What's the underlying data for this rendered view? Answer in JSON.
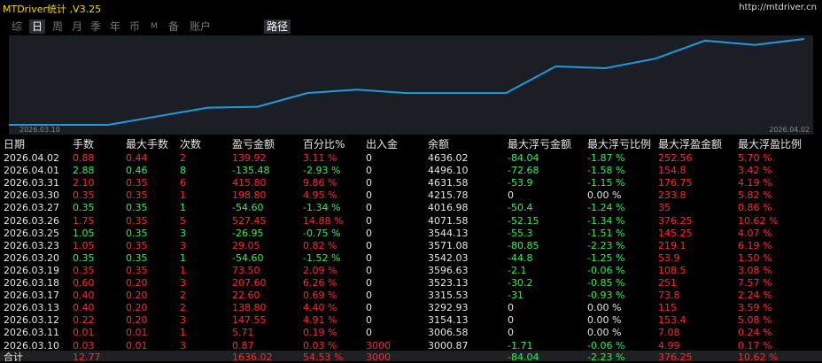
{
  "header": {
    "title": "MTDriver统计 ,V3.25",
    "url": "http://mtdriver.cn"
  },
  "tabs": [
    "综",
    "日",
    "周",
    "月",
    "季",
    "年",
    "币",
    "M",
    "备",
    "账户",
    "路径"
  ],
  "chart": {
    "start_label": "2026.03.10",
    "end_label": "2026.04.02",
    "values": [
      0,
      0,
      0,
      10,
      20,
      21,
      37,
      41,
      37,
      37,
      37,
      68,
      66,
      77,
      98,
      93,
      100
    ],
    "ylim": [
      0,
      100
    ],
    "color": "#1e9be0"
  },
  "table": {
    "columns": [
      "日期",
      "手数",
      "最大手数",
      "次数",
      "盈亏金额",
      "百分比%",
      "出入金",
      "余额",
      "最大浮亏金额",
      "最大浮亏比例",
      "最大浮盈金额",
      "最大浮盈比例"
    ],
    "rows": [
      [
        "2026.04.02",
        "0.88",
        "0.44",
        "2",
        "139.92",
        "3.11 %",
        "0",
        "4636.02",
        "-84.04",
        "-1.87 %",
        "252.56",
        "5.70 %"
      ],
      [
        "2026.04.01",
        "2.88",
        "0.46",
        "8",
        "-135.48",
        "-2.93 %",
        "0",
        "4496.10",
        "-72.68",
        "-1.58 %",
        "154.8",
        "3.42 %"
      ],
      [
        "2026.03.31",
        "2.10",
        "0.35",
        "6",
        "415.80",
        "9.86 %",
        "0",
        "4631.58",
        "-53.9",
        "-1.15 %",
        "176.75",
        "4.19 %"
      ],
      [
        "2026.03.30",
        "0.35",
        "0.35",
        "1",
        "198.80",
        "4.95 %",
        "0",
        "4215.78",
        "0",
        "0.00 %",
        "233.8",
        "5.82 %"
      ],
      [
        "2026.03.27",
        "0.35",
        "0.35",
        "1",
        "-54.60",
        "-1.34 %",
        "0",
        "4016.98",
        "-50.4",
        "-1.24 %",
        "35",
        "0.86 %"
      ],
      [
        "2026.03.26",
        "1.75",
        "0.35",
        "5",
        "527.45",
        "14.88 %",
        "0",
        "4071.58",
        "-52.15",
        "-1.34 %",
        "376.25",
        "10.62 %"
      ],
      [
        "2026.03.25",
        "1.05",
        "0.35",
        "3",
        "-26.95",
        "-0.75 %",
        "0",
        "3544.13",
        "-55.3",
        "-1.51 %",
        "145.25",
        "4.07 %"
      ],
      [
        "2026.03.23",
        "1.05",
        "0.35",
        "3",
        "29.05",
        "0.82 %",
        "0",
        "3571.08",
        "-80.85",
        "-2.23 %",
        "219.1",
        "6.19 %"
      ],
      [
        "2026.03.20",
        "0.35",
        "0.35",
        "1",
        "-54.60",
        "-1.52 %",
        "0",
        "3542.03",
        "-44.8",
        "-1.25 %",
        "53.9",
        "1.50 %"
      ],
      [
        "2026.03.19",
        "0.35",
        "0.35",
        "1",
        "73.50",
        "2.09 %",
        "0",
        "3596.63",
        "-2.1",
        "-0.06 %",
        "108.5",
        "3.08 %"
      ],
      [
        "2026.03.18",
        "0.60",
        "0.20",
        "3",
        "207.60",
        "6.26 %",
        "0",
        "3523.13",
        "-30.2",
        "-0.85 %",
        "251",
        "7.57 %"
      ],
      [
        "2026.03.17",
        "0.40",
        "0.20",
        "2",
        "22.60",
        "0.69 %",
        "0",
        "3315.53",
        "-31",
        "-0.93 %",
        "73.8",
        "2.24 %"
      ],
      [
        "2026.03.13",
        "0.40",
        "0.20",
        "2",
        "138.80",
        "4.40 %",
        "0",
        "3292.93",
        "0",
        "0.00 %",
        "115",
        "3.59 %"
      ],
      [
        "2026.03.12",
        "0.22",
        "0.20",
        "3",
        "147.55",
        "4.91 %",
        "0",
        "3154.13",
        "0",
        "0.00 %",
        "153.4",
        "5.08 %"
      ],
      [
        "2026.03.11",
        "0.01",
        "0.01",
        "1",
        "5.71",
        "0.19 %",
        "0",
        "3006.58",
        "0",
        "0.00 %",
        "7.08",
        "0.24 %"
      ],
      [
        "2026.03.10",
        "0.03",
        "0.01",
        "3",
        "0.87",
        "0.03 %",
        "3000",
        "3000.87",
        "-1.71",
        "-0.06 %",
        "4.99",
        "0.17 %"
      ]
    ],
    "total": [
      "合计",
      "12.77",
      "",
      "",
      "1636.02",
      "54.53 %",
      "3000",
      "",
      "-84.04",
      "-2.23 %",
      "376.25",
      "10.62 %"
    ]
  }
}
